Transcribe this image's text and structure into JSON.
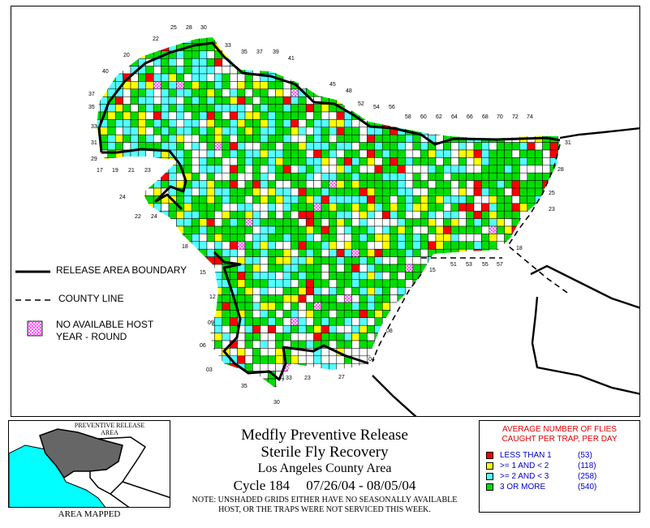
{
  "legend": {
    "boundary_label": "RELEASE AREA BOUNDARY",
    "county_label": "COUNTY LINE",
    "no_host_line1": "NO AVAILABLE HOST",
    "no_host_line2": "YEAR - ROUND"
  },
  "title": {
    "line1": "Medfly Preventive Release",
    "line2": "Sterile Fly Recovery",
    "line3": "Los Angeles County Area",
    "cycle": "Cycle 184",
    "dates": "07/26/04 - 08/05/04",
    "note_line1": "NOTE: UNSHADED GRIDS EITHER HAVE NO SEASONALLY AVAILABLE",
    "note_line2": "HOST, OR THE TRAPS WERE NOT SERVICED THIS WEEK."
  },
  "inset": {
    "label_line1": "PREVENTIVE RELEASE",
    "label_line2": "AREA",
    "caption": "AREA MAPPED"
  },
  "key": {
    "title_line1": "AVERAGE NUMBER OF FLIES",
    "title_line2": "CAUGHT PER TRAP, PER DAY",
    "items": [
      {
        "label": "LESS THAN 1",
        "count": "(53)",
        "color": "#ff0000"
      },
      {
        "label": ">= 1 AND < 2",
        "count": "(118)",
        "color": "#ffff00"
      },
      {
        "label": ">= 2 AND < 3",
        "count": "(258)",
        "color": "#55ffff"
      },
      {
        "label": "3 OR MORE",
        "count": "(540)",
        "color": "#00dd00"
      }
    ]
  },
  "colors": {
    "none": "#ffffff",
    "low": "#ff0000",
    "mid1": "#ffff00",
    "mid2": "#55ffff",
    "high": "#00dd00",
    "no_host": "#ff66ff"
  },
  "grid_labels": {
    "top": [
      "25",
      "28",
      "30",
      "22",
      "33",
      "35",
      "37",
      "39",
      "20",
      "41",
      "40",
      "45",
      "48",
      "37",
      "52",
      "54",
      "56",
      "35",
      "58",
      "60",
      "62",
      "64",
      "66",
      "68",
      "70",
      "72",
      "74"
    ],
    "left": [
      "33",
      "31",
      "29",
      "17",
      "19",
      "21",
      "23",
      "24",
      "22",
      "24",
      "18",
      "15",
      "12",
      "09",
      "06",
      "03",
      "35",
      "30",
      "33",
      "23",
      "27",
      "04",
      "08",
      "15"
    ],
    "right": [
      "31",
      "28",
      "25",
      "23",
      "18",
      "51",
      "53",
      "55",
      "57"
    ]
  }
}
